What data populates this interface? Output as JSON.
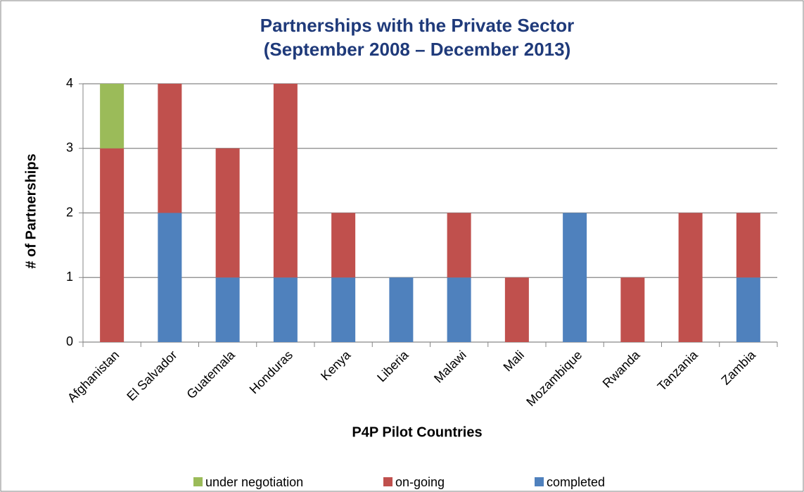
{
  "chart_data": {
    "type": "stacked_bar",
    "title": "Partnerships with the Private Sector",
    "subtitle": "(September 2008 – December 2013)",
    "x_label": "P4P Pilot Countries",
    "y_label": "# of  Partnerships",
    "categories": [
      "Afghanistan",
      "El Salvador",
      "Guatemala",
      "Honduras",
      "Kenya",
      "Liberia",
      "Malawi",
      "Mali",
      "Mozambique",
      "Rwanda",
      "Tanzania",
      "Zambia"
    ],
    "series": [
      {
        "name": "completed",
        "color": "#4f81bd",
        "values": [
          0,
          2,
          1,
          1,
          1,
          1,
          1,
          0,
          2,
          0,
          0,
          1
        ]
      },
      {
        "name": "on-going",
        "color": "#c0504d",
        "values": [
          3,
          2,
          2,
          3,
          1,
          0,
          1,
          1,
          0,
          1,
          2,
          1
        ]
      },
      {
        "name": "under negotiation",
        "color": "#9bbb59",
        "values": [
          1,
          0,
          0,
          0,
          0,
          0,
          0,
          0,
          0,
          0,
          0,
          0
        ]
      }
    ],
    "ylim": [
      0,
      4
    ],
    "yticks": [
      0,
      1,
      2,
      3,
      4
    ],
    "grid": true,
    "legend": "bottom"
  }
}
